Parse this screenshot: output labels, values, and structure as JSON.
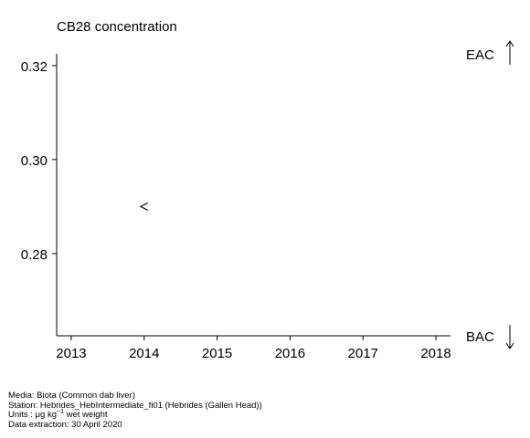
{
  "chart_data": {
    "type": "scatter",
    "title": "CB28 concentration",
    "xlabel": "",
    "ylabel": "",
    "xlim": [
      2012.8,
      2018.2
    ],
    "ylim": [
      0.2625,
      0.3225
    ],
    "x_ticks": [
      "2013",
      "2014",
      "2015",
      "2016",
      "2017",
      "2018"
    ],
    "y_ticks": [
      "0.32",
      "0.30",
      "0.28"
    ],
    "points": [
      {
        "x": 2014,
        "y": 0.29,
        "marker": "<",
        "note": "less-than value"
      }
    ],
    "reference_lines": [
      {
        "label": "EAC",
        "direction": "up"
      },
      {
        "label": "BAC",
        "direction": "down"
      }
    ],
    "grid": false
  },
  "footer": {
    "media": "Media: Biota (Common dab liver)",
    "station": "Station: Hebrides_HebIntermediate_fi01 (Hebrides (Gallen Head))",
    "units_prefix": "Units : μg kg",
    "units_sup": "−1",
    "units_suffix": " wet weight",
    "extraction": "Data extraction: 30 April 2020"
  }
}
